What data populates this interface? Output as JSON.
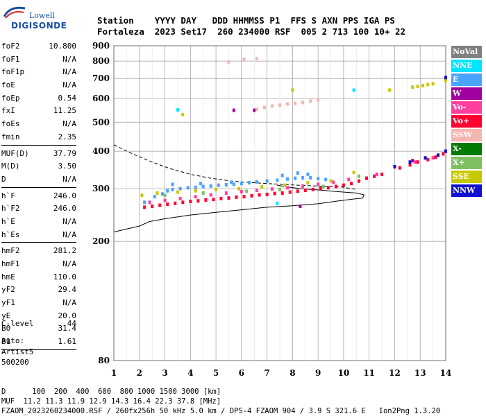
{
  "logo": {
    "line1": "Lowell",
    "line2": "DIGISONDE"
  },
  "header": {
    "row1": "Station    YYYY DAY   DDD HHMMSS P1  FFS S AXN PPS IGA PS",
    "row2": "Fortaleza  2023 Set17  260 234000 RSF  005 2 713 100 10+ 22"
  },
  "params": [
    [
      {
        "k": "foF2",
        "v": "10.800"
      },
      {
        "k": "foF1",
        "v": "N/A"
      },
      {
        "k": "foF1p",
        "v": "N/A"
      },
      {
        "k": "foE",
        "v": "N/A"
      },
      {
        "k": "foEp",
        "v": "0.54"
      },
      {
        "k": "fxI",
        "v": "11.25"
      },
      {
        "k": "foEs",
        "v": "N/A"
      },
      {
        "k": "fmin",
        "v": "2.35"
      }
    ],
    [
      {
        "k": "MUF(D)",
        "v": "37.79"
      },
      {
        "k": "M(D)",
        "v": "3.50"
      },
      {
        "k": "D",
        "v": "N/A"
      }
    ],
    [
      {
        "k": "h`F",
        "v": "246.0"
      },
      {
        "k": "h`F2",
        "v": "246.0"
      },
      {
        "k": "h`E",
        "v": "N/A"
      },
      {
        "k": "h`Es",
        "v": "N/A"
      }
    ],
    [
      {
        "k": "hmF2",
        "v": "281.2"
      },
      {
        "k": "hmF1",
        "v": "N/A"
      },
      {
        "k": "hmE",
        "v": "110.0"
      },
      {
        "k": "yF2",
        "v": "29.4"
      },
      {
        "k": "yF1",
        "v": "N/A"
      },
      {
        "k": "yE",
        "v": "20.0"
      },
      {
        "k": "B0",
        "v": "31.4"
      },
      {
        "k": "B1",
        "v": "1.61"
      }
    ]
  ],
  "clevel": {
    "k": "C-level",
    "v": "44"
  },
  "auto": {
    "l1": "Auto:",
    "l2": "Artist5",
    "l3": "500200"
  },
  "legend": [
    {
      "label": "NoVal",
      "color": "#808080"
    },
    {
      "label": "NNE",
      "color": "#00e5ff"
    },
    {
      "label": "E",
      "color": "#4aa3ff"
    },
    {
      "label": "W",
      "color": "#a000a0"
    },
    {
      "label": "Vo-",
      "color": "#ff3f9f"
    },
    {
      "label": "Vo+",
      "color": "#ff0030"
    },
    {
      "label": "SSW",
      "color": "#f4b6b0"
    },
    {
      "label": "X-",
      "color": "#007a00"
    },
    {
      "label": "X+",
      "color": "#7fc060"
    },
    {
      "label": "SSE",
      "color": "#c8c800"
    },
    {
      "label": "NNW",
      "color": "#1010d0"
    }
  ],
  "footer": {
    "l1": "D      100  200  400  600  800 1000 1500 3000 [km]",
    "l2": "MUF  11.2 11.3 11.9 12.9 14.3 16.4 22.3 37.8 [MHz]",
    "l3": "FZAOM_2023260234000.RSF / 260fx256h 50 kHz 5.0 km / DPS-4 FZAOM 904 / 3.9 S 321.6 E   Ion2Png 1.3.20"
  },
  "chart_data": {
    "type": "scatter",
    "xlim": [
      1,
      14
    ],
    "ylim": [
      80,
      900
    ],
    "y_scale": "log",
    "x_ticks": [
      1,
      2,
      3,
      4,
      5,
      6,
      7,
      8,
      9,
      10,
      11,
      12,
      13,
      14
    ],
    "y_ticks": [
      80,
      200,
      300,
      400,
      500,
      600,
      700,
      800,
      900
    ],
    "grid": true,
    "series": [
      {
        "name": "E",
        "color": "#4aa3ff",
        "points": [
          [
            2.2,
            270
          ],
          [
            2.6,
            282
          ],
          [
            2.9,
            288
          ],
          [
            3.1,
            295
          ],
          [
            3.3,
            298
          ],
          [
            3.6,
            300
          ],
          [
            3.9,
            302
          ],
          [
            4.2,
            303
          ],
          [
            4.5,
            305
          ],
          [
            4.8,
            306
          ],
          [
            5.1,
            308
          ],
          [
            5.4,
            309
          ],
          [
            5.7,
            310
          ],
          [
            6.0,
            312
          ],
          [
            6.3,
            314
          ],
          [
            6.6,
            316
          ],
          [
            7.0,
            318
          ],
          [
            7.4,
            320
          ],
          [
            7.8,
            323
          ],
          [
            8.1,
            325
          ],
          [
            8.4,
            326
          ],
          [
            8.7,
            326
          ],
          [
            9.0,
            324
          ],
          [
            9.3,
            322
          ],
          [
            3.3,
            310
          ],
          [
            4.4,
            312
          ],
          [
            5.6,
            315
          ],
          [
            7.6,
            332
          ],
          [
            8.2,
            338
          ],
          [
            8.6,
            335
          ]
        ]
      },
      {
        "name": "Vo+",
        "color": "#ff0030",
        "points": [
          [
            2.2,
            260
          ],
          [
            2.5,
            262
          ],
          [
            2.8,
            264
          ],
          [
            3.1,
            266
          ],
          [
            3.4,
            268
          ],
          [
            3.7,
            270
          ],
          [
            4.0,
            272
          ],
          [
            4.3,
            273
          ],
          [
            4.6,
            275
          ],
          [
            4.9,
            276
          ],
          [
            5.2,
            278
          ],
          [
            5.5,
            279
          ],
          [
            5.8,
            281
          ],
          [
            6.1,
            282
          ],
          [
            6.4,
            284
          ],
          [
            6.7,
            286
          ],
          [
            7.0,
            287
          ],
          [
            7.3,
            289
          ],
          [
            7.6,
            290
          ],
          [
            7.9,
            292
          ],
          [
            8.2,
            294
          ],
          [
            8.5,
            296
          ],
          [
            8.8,
            298
          ],
          [
            9.1,
            300
          ],
          [
            9.4,
            302
          ],
          [
            9.7,
            305
          ],
          [
            10.0,
            308
          ],
          [
            10.3,
            312
          ],
          [
            10.6,
            318
          ],
          [
            10.9,
            325
          ],
          [
            11.2,
            330
          ],
          [
            11.5,
            335
          ],
          [
            12.2,
            352
          ],
          [
            12.6,
            360
          ],
          [
            12.9,
            368
          ],
          [
            13.3,
            375
          ],
          [
            13.6,
            382
          ],
          [
            13.9,
            392
          ]
        ]
      },
      {
        "name": "Vo-",
        "color": "#ff3f9f",
        "points": [
          [
            2.4,
            270
          ],
          [
            3.0,
            274
          ],
          [
            3.6,
            278
          ],
          [
            4.2,
            282
          ],
          [
            4.8,
            286
          ],
          [
            5.4,
            290
          ],
          [
            6.0,
            293
          ],
          [
            6.6,
            296
          ],
          [
            7.2,
            299
          ],
          [
            7.8,
            302
          ],
          [
            8.4,
            306
          ],
          [
            9.0,
            310
          ],
          [
            9.6,
            315
          ],
          [
            10.2,
            322
          ],
          [
            11.3,
            335
          ],
          [
            12.8,
            368
          ],
          [
            13.5,
            380
          ]
        ]
      },
      {
        "name": "SSE",
        "color": "#c8c800",
        "points": [
          [
            2.1,
            285
          ],
          [
            2.7,
            290
          ],
          [
            3.5,
            292
          ],
          [
            4.2,
            295
          ],
          [
            5.0,
            298
          ],
          [
            5.9,
            300
          ],
          [
            6.8,
            304
          ],
          [
            7.7,
            308
          ],
          [
            8.6,
            314
          ],
          [
            9.5,
            318
          ],
          [
            10.4,
            340
          ],
          [
            3.7,
            530
          ],
          [
            8.0,
            640
          ],
          [
            11.8,
            640
          ],
          [
            12.7,
            655
          ],
          [
            12.9,
            658
          ],
          [
            13.1,
            662
          ],
          [
            13.3,
            668
          ],
          [
            13.5,
            672
          ],
          [
            14.0,
            690
          ]
        ]
      },
      {
        "name": "X+",
        "color": "#7fc060",
        "points": [
          [
            3.0,
            285
          ],
          [
            4.5,
            290
          ],
          [
            6.2,
            294
          ],
          [
            7.5,
            298
          ],
          [
            9.2,
            305
          ],
          [
            10.6,
            330
          ]
        ]
      },
      {
        "name": "NNW",
        "color": "#1010d0",
        "points": [
          [
            12.0,
            355
          ],
          [
            12.6,
            368
          ],
          [
            13.2,
            380
          ],
          [
            13.7,
            388
          ],
          [
            14.0,
            400
          ],
          [
            14.0,
            705
          ]
        ]
      },
      {
        "name": "W",
        "color": "#a000a0",
        "points": [
          [
            5.7,
            548
          ],
          [
            6.5,
            548
          ],
          [
            8.3,
            262
          ],
          [
            12.7,
            372
          ]
        ]
      },
      {
        "name": "SSW",
        "color": "#f4b6b0",
        "points": [
          [
            5.5,
            795
          ],
          [
            6.1,
            812
          ],
          [
            6.6,
            815
          ],
          [
            6.6,
            552
          ],
          [
            6.9,
            560
          ],
          [
            7.2,
            566
          ],
          [
            7.5,
            570
          ],
          [
            7.8,
            575
          ],
          [
            8.1,
            578
          ],
          [
            8.4,
            582
          ],
          [
            8.7,
            588
          ],
          [
            9.0,
            594
          ]
        ]
      },
      {
        "name": "NNE",
        "color": "#00e5ff",
        "points": [
          [
            3.5,
            550
          ],
          [
            10.4,
            640
          ],
          [
            7.4,
            268
          ]
        ]
      }
    ],
    "curves": [
      {
        "style": "dashed",
        "points": [
          [
            1.0,
            420
          ],
          [
            1.8,
            390
          ],
          [
            2.5,
            368
          ],
          [
            3.2,
            350
          ],
          [
            4.0,
            335
          ],
          [
            4.8,
            325
          ],
          [
            5.6,
            318
          ],
          [
            6.2,
            315
          ],
          [
            7.0,
            312
          ],
          [
            7.6,
            310
          ],
          [
            8.2,
            308
          ],
          [
            9.0,
            306
          ],
          [
            9.8,
            305
          ],
          [
            10.3,
            300
          ],
          [
            10.5,
            298
          ]
        ]
      },
      {
        "style": "solid",
        "points": [
          [
            1.0,
            215
          ],
          [
            2.0,
            225
          ],
          [
            2.4,
            233
          ],
          [
            3.0,
            238
          ],
          [
            4.0,
            245
          ],
          [
            5.0,
            250
          ],
          [
            6.0,
            255
          ],
          [
            7.0,
            260
          ],
          [
            8.0,
            263
          ],
          [
            9.0,
            267
          ],
          [
            9.8,
            273
          ],
          [
            10.4,
            277
          ],
          [
            10.75,
            279
          ],
          [
            10.8,
            286
          ],
          [
            10.5,
            290
          ],
          [
            9.8,
            293
          ],
          [
            9.0,
            297
          ],
          [
            8.3,
            300
          ],
          [
            7.8,
            304
          ],
          [
            7.4,
            308
          ]
        ]
      }
    ]
  }
}
